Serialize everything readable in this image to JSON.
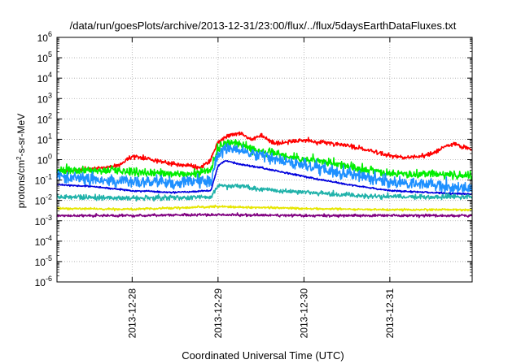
{
  "chart_data": {
    "type": "line",
    "title": "/data/run/goesPlots/archive/2013-12-31/23:00/flux/../flux/5daysEarthDataFluxes.txt",
    "xlabel": "Coordinated Universal Time (UTC)",
    "ylabel_parts": {
      "pre": "protons/cm",
      "sup": "2",
      "post": "-s-sr-MeV"
    },
    "yscale": "log",
    "ylim_exp": [
      -6,
      6
    ],
    "xlim": [
      "2013-12-27T03:00",
      "2013-12-31T23:00"
    ],
    "xticks": [
      {
        "label": "2013-12-28",
        "x": "2013-12-28T00:00"
      },
      {
        "label": "2013-12-29",
        "x": "2013-12-29T00:00"
      },
      {
        "label": "2013-12-30",
        "x": "2013-12-30T00:00"
      },
      {
        "label": "2013-12-31",
        "x": "2013-12-31T00:00"
      }
    ],
    "grid": true,
    "series": [
      {
        "color": "#ff0000",
        "points": [
          [
            "2013-12-27T03:00",
            0.3
          ],
          [
            "2013-12-27T09:00",
            0.3
          ],
          [
            "2013-12-27T15:00",
            0.4
          ],
          [
            "2013-12-27T20:00",
            0.5
          ],
          [
            "2013-12-28T00:00",
            1.5
          ],
          [
            "2013-12-28T04:00",
            1.2
          ],
          [
            "2013-12-28T08:00",
            0.8
          ],
          [
            "2013-12-28T12:00",
            0.6
          ],
          [
            "2013-12-28T16:00",
            0.5
          ],
          [
            "2013-12-28T19:00",
            0.4
          ],
          [
            "2013-12-28T22:00",
            1.0
          ],
          [
            "2013-12-29T00:00",
            8
          ],
          [
            "2013-12-29T03:00",
            15
          ],
          [
            "2013-12-29T06:00",
            20
          ],
          [
            "2013-12-29T09:00",
            10
          ],
          [
            "2013-12-29T12:00",
            15
          ],
          [
            "2013-12-29T16:00",
            6
          ],
          [
            "2013-12-29T20:00",
            8
          ],
          [
            "2013-12-30T00:00",
            9
          ],
          [
            "2013-12-30T06:00",
            7
          ],
          [
            "2013-12-30T12:00",
            5
          ],
          [
            "2013-12-30T18:00",
            3
          ],
          [
            "2013-12-31T00:00",
            1.5
          ],
          [
            "2013-12-31T06:00",
            1.2
          ],
          [
            "2013-12-31T12:00",
            2
          ],
          [
            "2013-12-31T16:00",
            5
          ],
          [
            "2013-12-31T18:00",
            6
          ],
          [
            "2013-12-31T21:00",
            4
          ],
          [
            "2013-12-31T23:00",
            3
          ]
        ],
        "jitter": 0.1
      },
      {
        "color": "#00ee00",
        "points": [
          [
            "2013-12-27T03:00",
            0.3
          ],
          [
            "2013-12-27T12:00",
            0.3
          ],
          [
            "2013-12-27T18:00",
            0.3
          ],
          [
            "2013-12-28T00:00",
            0.25
          ],
          [
            "2013-12-28T08:00",
            0.2
          ],
          [
            "2013-12-28T16:00",
            0.2
          ],
          [
            "2013-12-28T22:00",
            0.3
          ],
          [
            "2013-12-29T00:00",
            4
          ],
          [
            "2013-12-29T02:00",
            7
          ],
          [
            "2013-12-29T06:00",
            6
          ],
          [
            "2013-12-29T10:00",
            3
          ],
          [
            "2013-12-29T16:00",
            2
          ],
          [
            "2013-12-30T00:00",
            1
          ],
          [
            "2013-12-30T12:00",
            0.5
          ],
          [
            "2013-12-31T00:00",
            0.2
          ],
          [
            "2013-12-31T12:00",
            0.2
          ],
          [
            "2013-12-31T23:00",
            0.15
          ]
        ],
        "jitter": 0.2
      },
      {
        "color": "#1e90ff",
        "points": [
          [
            "2013-12-27T03:00",
            0.15
          ],
          [
            "2013-12-27T12:00",
            0.12
          ],
          [
            "2013-12-28T00:00",
            0.08
          ],
          [
            "2013-12-28T12:00",
            0.07
          ],
          [
            "2013-12-28T22:00",
            0.1
          ],
          [
            "2013-12-29T00:00",
            2
          ],
          [
            "2013-12-29T02:00",
            4
          ],
          [
            "2013-12-29T06:00",
            2.5
          ],
          [
            "2013-12-29T12:00",
            1.5
          ],
          [
            "2013-12-30T00:00",
            0.5
          ],
          [
            "2013-12-30T12:00",
            0.2
          ],
          [
            "2013-12-31T00:00",
            0.08
          ],
          [
            "2013-12-31T12:00",
            0.05
          ],
          [
            "2013-12-31T23:00",
            0.04
          ]
        ],
        "jitter": 0.3
      },
      {
        "color": "#0000dd",
        "points": [
          [
            "2013-12-27T03:00",
            0.06
          ],
          [
            "2013-12-27T12:00",
            0.05
          ],
          [
            "2013-12-28T00:00",
            0.03
          ],
          [
            "2013-12-28T12:00",
            0.025
          ],
          [
            "2013-12-28T22:00",
            0.03
          ],
          [
            "2013-12-29T00:00",
            0.5
          ],
          [
            "2013-12-29T02:00",
            0.9
          ],
          [
            "2013-12-29T06:00",
            0.6
          ],
          [
            "2013-12-29T12:00",
            0.4
          ],
          [
            "2013-12-30T00:00",
            0.15
          ],
          [
            "2013-12-30T12:00",
            0.06
          ],
          [
            "2013-12-31T00:00",
            0.03
          ],
          [
            "2013-12-31T23:00",
            0.02
          ]
        ],
        "jitter": 0.04
      },
      {
        "color": "#20b2aa",
        "points": [
          [
            "2013-12-27T03:00",
            0.015
          ],
          [
            "2013-12-28T00:00",
            0.013
          ],
          [
            "2013-12-28T22:00",
            0.015
          ],
          [
            "2013-12-29T00:00",
            0.05
          ],
          [
            "2013-12-29T06:00",
            0.05
          ],
          [
            "2013-12-29T12:00",
            0.035
          ],
          [
            "2013-12-30T00:00",
            0.025
          ],
          [
            "2013-12-30T12:00",
            0.018
          ],
          [
            "2013-12-31T00:00",
            0.015
          ],
          [
            "2013-12-31T23:00",
            0.015
          ]
        ],
        "jitter": 0.12
      },
      {
        "color": "#e6e600",
        "points": [
          [
            "2013-12-27T03:00",
            0.004
          ],
          [
            "2013-12-28T00:00",
            0.0037
          ],
          [
            "2013-12-29T00:00",
            0.005
          ],
          [
            "2013-12-30T00:00",
            0.004
          ],
          [
            "2013-12-31T00:00",
            0.0035
          ],
          [
            "2013-12-31T23:00",
            0.0035
          ]
        ],
        "jitter": 0.05
      },
      {
        "color": "#800080",
        "points": [
          [
            "2013-12-27T03:00",
            0.0018
          ],
          [
            "2013-12-28T00:00",
            0.0018
          ],
          [
            "2013-12-29T00:00",
            0.002
          ],
          [
            "2013-12-30T00:00",
            0.0018
          ],
          [
            "2013-12-31T23:00",
            0.0018
          ]
        ],
        "jitter": 0.06
      }
    ]
  }
}
